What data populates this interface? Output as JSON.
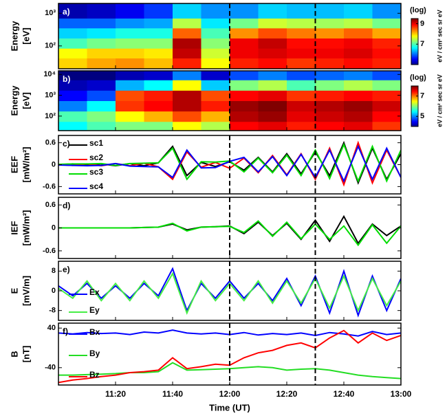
{
  "time_axis": {
    "xlabel": "Time (UT)",
    "xlim": [
      660,
      780
    ],
    "xticks": [
      {
        "value": 680,
        "label": "11:20"
      },
      {
        "value": 700,
        "label": "11:40"
      },
      {
        "value": 720,
        "label": "12:00"
      },
      {
        "value": 740,
        "label": "12:20"
      },
      {
        "value": 760,
        "label": "12:40"
      },
      {
        "value": 780,
        "label": "13:00"
      }
    ],
    "vlines": [
      720,
      750
    ]
  },
  "chart_data": [
    {
      "type": "heatmap",
      "panel_label": "a)",
      "ylabel": [
        "Energy",
        "[eV]"
      ],
      "log": true,
      "ylim": [
        20,
        2000
      ],
      "yticks": [
        {
          "value": 100,
          "label": "10²"
        },
        {
          "value": 1000,
          "label": "10³"
        }
      ],
      "x": [
        665,
        675,
        685,
        695,
        705,
        715,
        725,
        735,
        745,
        755,
        765,
        775
      ],
      "y": [
        30,
        60,
        120,
        250,
        500,
        1000
      ],
      "z": [
        [
          8,
          8.2,
          8.3,
          8.1,
          8.8,
          7.8,
          8.8,
          8.9,
          8.7,
          8.8,
          8.9,
          8.8
        ],
        [
          7.8,
          8,
          8,
          7.9,
          9.2,
          7.6,
          9,
          9.1,
          9,
          9,
          9.1,
          8.9
        ],
        [
          7,
          7.2,
          7.3,
          7.3,
          9.3,
          7.3,
          9,
          9.2,
          8.9,
          8.9,
          9,
          8.8
        ],
        [
          6.5,
          6.6,
          6.8,
          6.8,
          8.5,
          7,
          8.3,
          8.6,
          8.4,
          8.3,
          8.5,
          8.2
        ],
        [
          6,
          6,
          6.2,
          6.3,
          7.5,
          6.6,
          7.2,
          7.6,
          7.5,
          7.4,
          7.5,
          7.2
        ],
        [
          5.2,
          5.3,
          5.5,
          5.8,
          6.5,
          6.2,
          6.2,
          6.5,
          6.4,
          6.4,
          6.5,
          6.2
        ]
      ],
      "clim": [
        5,
        9.5
      ],
      "cticks": [
        7,
        9
      ],
      "cbar_title": "(log)",
      "cbar_unit": "eV / cm² sec sr eV"
    },
    {
      "type": "heatmap",
      "panel_label": "b)",
      "ylabel": [
        "Energy",
        "[eV]"
      ],
      "log": true,
      "ylim": [
        20,
        15000
      ],
      "yticks": [
        {
          "value": 100,
          "label": "10²"
        },
        {
          "value": 1000,
          "label": "10³"
        },
        {
          "value": 10000,
          "label": "10⁴"
        }
      ],
      "x": [
        665,
        675,
        685,
        695,
        705,
        715,
        725,
        735,
        745,
        755,
        765,
        775
      ],
      "y": [
        30,
        100,
        300,
        1000,
        3000,
        10000
      ],
      "z": [
        [
          5.5,
          5.8,
          6,
          6,
          6.5,
          6.2,
          7.5,
          7.6,
          7.4,
          7.5,
          7.6,
          7.3
        ],
        [
          5.8,
          6,
          6.5,
          6.8,
          7.2,
          6.8,
          7.8,
          7.9,
          7.6,
          7.7,
          7.8,
          7.5
        ],
        [
          5,
          5.5,
          7.3,
          7.5,
          7.8,
          7.4,
          7.9,
          8,
          7.7,
          7.8,
          7.9,
          7.7
        ],
        [
          4.5,
          4.8,
          7.2,
          7.4,
          7.8,
          7.2,
          7.5,
          7.6,
          7.3,
          7.4,
          7.5,
          7.4
        ],
        [
          4.2,
          4.3,
          5.2,
          5.5,
          6.5,
          5.3,
          6,
          6.2,
          5.8,
          6,
          6.2,
          6
        ],
        [
          4,
          4,
          4.2,
          4.3,
          5,
          4.3,
          4.8,
          5,
          4.8,
          4.9,
          5,
          4.8
        ]
      ],
      "clim": [
        4,
        8
      ],
      "cticks": [
        5,
        7
      ],
      "cbar_title": "(log)",
      "cbar_unit": "eV / cm² sec sr eV"
    },
    {
      "type": "line",
      "panel_label": "c)",
      "ylabel": [
        "EEF",
        "[mW/m²]"
      ],
      "ylim": [
        -0.8,
        0.8
      ],
      "yticks": [
        -0.6,
        0,
        0.6
      ],
      "legend": "upper left",
      "x": [
        660,
        665,
        670,
        675,
        680,
        685,
        690,
        695,
        700,
        705,
        710,
        715,
        720,
        725,
        730,
        735,
        740,
        745,
        750,
        755,
        760,
        765,
        770,
        775,
        780
      ],
      "series": [
        {
          "name": "sc1",
          "color": "#000000",
          "values": [
            0,
            0.02,
            -0.02,
            0.02,
            -0.03,
            0.03,
            -0.03,
            0.05,
            0.5,
            -0.3,
            0.06,
            -0.05,
            0.08,
            -0.15,
            0.2,
            -0.2,
            0.3,
            -0.25,
            0.35,
            -0.3,
            0.6,
            -0.5,
            0.45,
            -0.4,
            0.3
          ]
        },
        {
          "name": "sc2",
          "color": "#ff0000",
          "values": [
            0,
            -0.02,
            0.02,
            -0.03,
            0.03,
            -0.03,
            0.04,
            -0.06,
            -0.4,
            0.35,
            -0.07,
            0.06,
            -0.1,
            0.18,
            -0.22,
            0.25,
            -0.28,
            0.3,
            -0.4,
            0.45,
            -0.55,
            0.6,
            -0.5,
            0.4,
            -0.35
          ]
        },
        {
          "name": "sc3",
          "color": "#00dd00",
          "values": [
            0.01,
            0.02,
            0.02,
            0.03,
            -0.02,
            0.03,
            0.04,
            0.05,
            0.45,
            -0.4,
            0.08,
            0.07,
            0.1,
            -0.2,
            0.18,
            -0.22,
            0.26,
            -0.3,
            0.4,
            -0.38,
            0.55,
            -0.45,
            0.5,
            -0.45,
            0.4
          ]
        },
        {
          "name": "sc4",
          "color": "#0000ff",
          "values": [
            -0.01,
            -0.02,
            -0.03,
            -0.02,
            0.03,
            -0.04,
            -0.05,
            -0.06,
            -0.35,
            0.4,
            -0.09,
            -0.08,
            0.09,
            0.2,
            -0.2,
            0.22,
            -0.3,
            0.28,
            -0.35,
            0.4,
            -0.45,
            0.5,
            -0.4,
            0.45,
            -0.35
          ]
        }
      ]
    },
    {
      "type": "line",
      "panel_label": "d)",
      "ylabel": [
        "IEF",
        "[mW/m²]"
      ],
      "ylim": [
        -0.8,
        0.8
      ],
      "yticks": [
        -0.6,
        0,
        0.6
      ],
      "x": [
        660,
        665,
        670,
        675,
        680,
        685,
        690,
        695,
        700,
        705,
        710,
        715,
        720,
        725,
        730,
        735,
        740,
        745,
        750,
        755,
        760,
        765,
        770,
        775,
        780
      ],
      "series": [
        {
          "color": "#000000",
          "values": [
            0,
            0,
            0,
            0,
            0,
            0,
            0.01,
            0.02,
            0.1,
            -0.05,
            0.02,
            0.03,
            0.05,
            -0.15,
            0.15,
            -0.2,
            0.12,
            -0.3,
            0.2,
            -0.35,
            0.3,
            -0.4,
            0.1,
            -0.2,
            0.05
          ]
        },
        {
          "color": "#00dd00",
          "values": [
            0,
            0,
            0,
            0,
            0,
            0,
            0.01,
            0.02,
            0.12,
            -0.08,
            0.02,
            0.03,
            0.04,
            -0.12,
            0.18,
            -0.22,
            0.15,
            -0.28,
            0.1,
            -0.3,
            0.05,
            -0.45,
            0.08,
            -0.4,
            0.05
          ]
        }
      ]
    },
    {
      "type": "line",
      "panel_label": "e)",
      "ylabel": [
        "E",
        "[mV/m]"
      ],
      "ylim": [
        -12,
        12
      ],
      "yticks": [
        -8,
        0,
        8
      ],
      "legend": "lower left",
      "x": [
        660,
        665,
        670,
        675,
        680,
        685,
        690,
        695,
        700,
        705,
        710,
        715,
        720,
        725,
        730,
        735,
        740,
        745,
        750,
        755,
        760,
        765,
        770,
        775,
        780
      ],
      "series": [
        {
          "name": "Ex",
          "color": "#0000ff",
          "values": [
            2,
            -2,
            3,
            -3,
            2,
            -3,
            3,
            -2,
            9,
            -8,
            3,
            -3,
            4,
            -3,
            3,
            -4,
            5,
            -6,
            6,
            -9,
            8,
            -10,
            6,
            -8,
            5
          ]
        },
        {
          "name": "Ey",
          "color": "#44ee44",
          "values": [
            1,
            -3,
            4,
            -4,
            3,
            -4,
            4,
            -3,
            7,
            -9,
            4,
            -4,
            3,
            -4,
            4,
            -5,
            4,
            -5,
            5,
            -7,
            6,
            -8,
            5,
            -6,
            4
          ]
        }
      ]
    },
    {
      "type": "line",
      "panel_label": "f)",
      "ylabel": [
        "B",
        "[nT]"
      ],
      "ylim": [
        -75,
        50
      ],
      "yticks": [
        -40,
        40
      ],
      "legend": "left",
      "x": [
        660,
        665,
        670,
        675,
        680,
        685,
        690,
        695,
        700,
        705,
        710,
        715,
        720,
        725,
        730,
        735,
        740,
        745,
        750,
        755,
        760,
        765,
        770,
        775,
        780
      ],
      "series": [
        {
          "name": "Bx",
          "color": "#0000ff",
          "values": [
            30,
            28,
            31,
            29,
            30,
            27,
            32,
            30,
            36,
            30,
            28,
            30,
            27,
            31,
            26,
            29,
            27,
            30,
            25,
            31,
            28,
            24,
            33,
            27,
            30
          ]
        },
        {
          "name": "By",
          "color": "#22dd22",
          "values": [
            -55,
            -55,
            -54,
            -53,
            -52,
            -50,
            -50,
            -48,
            -30,
            -45,
            -44,
            -43,
            -42,
            -40,
            -38,
            -40,
            -45,
            -43,
            -42,
            -45,
            -50,
            -55,
            -58,
            -60,
            -62
          ]
        },
        {
          "name": "Bz",
          "color": "#ff0000",
          "values": [
            -70,
            -65,
            -62,
            -58,
            -55,
            -50,
            -48,
            -45,
            -20,
            -42,
            -38,
            -33,
            -35,
            -20,
            -10,
            -5,
            5,
            10,
            0,
            20,
            35,
            10,
            30,
            15,
            25
          ]
        }
      ]
    }
  ]
}
